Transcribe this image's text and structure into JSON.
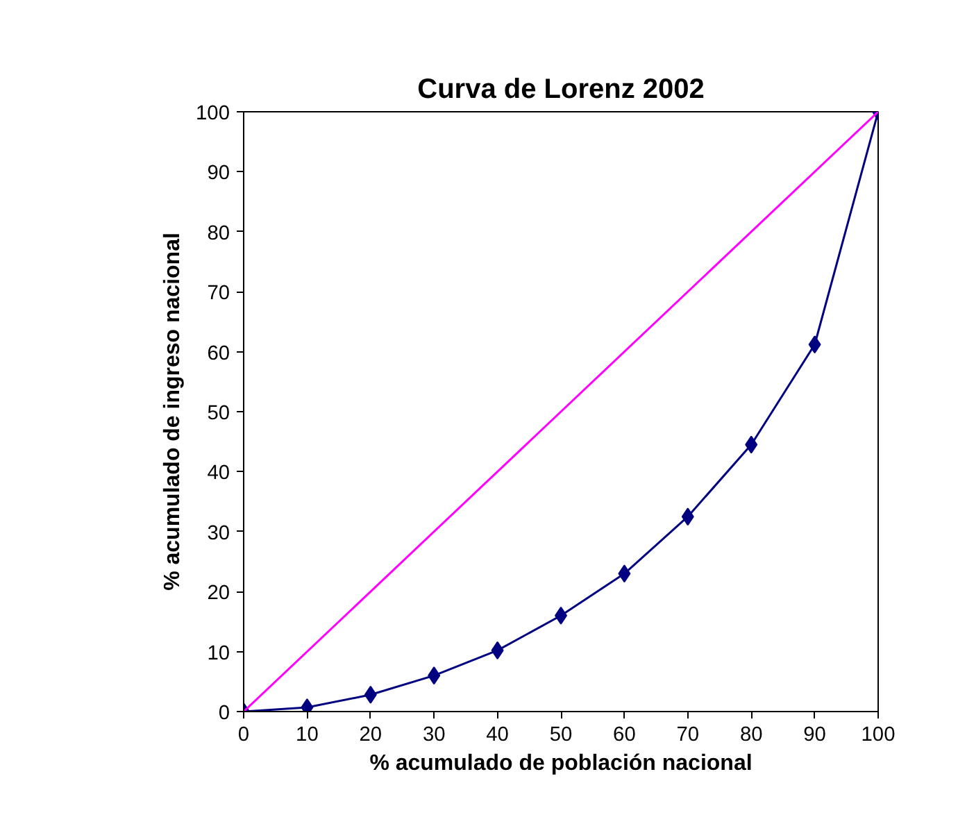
{
  "chart_data": {
    "type": "line",
    "title": "Curva de Lorenz 2002",
    "xlabel": "% acumulado de población nacional",
    "ylabel": "% acumulado de ingreso nacional",
    "series": [
      {
        "x": [
          0,
          10,
          20,
          30,
          40,
          50,
          60,
          70,
          80,
          90,
          100
        ],
        "values": [
          0,
          0.7,
          2.8,
          6,
          10.2,
          16,
          23,
          32.5,
          44.5,
          61.2,
          100
        ],
        "color": "#000080",
        "marker": "diamond"
      },
      {
        "x": [
          0,
          100
        ],
        "values": [
          0,
          100
        ],
        "color": "#ff00ff",
        "marker": "none"
      }
    ],
    "xlim": [
      0,
      100
    ],
    "ylim": [
      0,
      100
    ],
    "xticks": [
      0,
      10,
      20,
      30,
      40,
      50,
      60,
      70,
      80,
      90,
      100
    ],
    "yticks": [
      0,
      10,
      20,
      30,
      40,
      50,
      60,
      70,
      80,
      90,
      100
    ],
    "grid": false,
    "line_style": "solid"
  }
}
